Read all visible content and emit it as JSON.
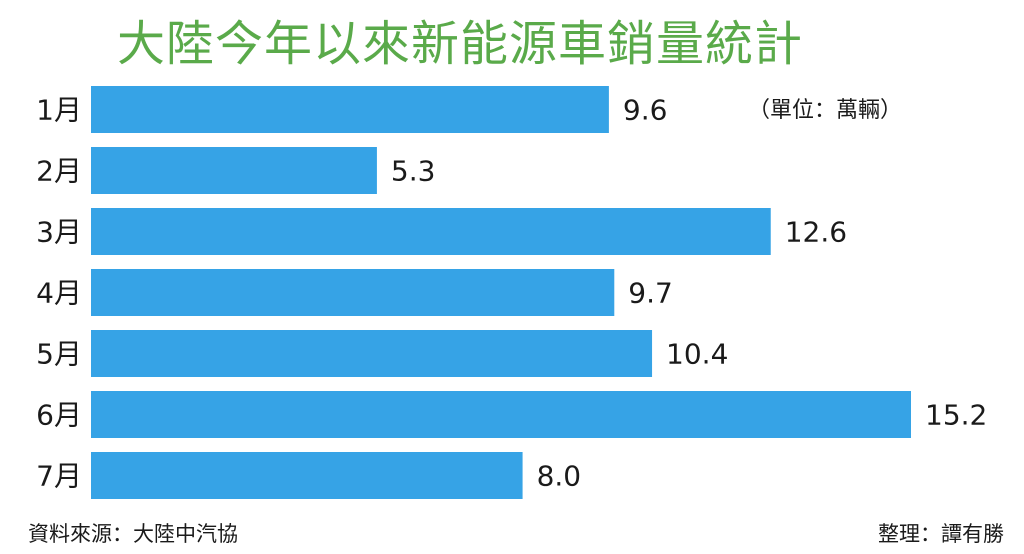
{
  "chart_data": {
    "type": "bar",
    "orientation": "horizontal",
    "title": "大陸今年以來新能源車銷量統計",
    "unit": "（單位：萬輛）",
    "categories": [
      "1月",
      "2月",
      "3月",
      "4月",
      "5月",
      "6月",
      "7月"
    ],
    "values": [
      9.6,
      5.3,
      12.6,
      9.7,
      10.4,
      15.2,
      8.0
    ],
    "value_labels": [
      "9.6",
      "5.3",
      "12.6",
      "9.7",
      "10.4",
      "15.2",
      "8.0"
    ],
    "xlim": [
      0,
      15.2
    ],
    "grid": false,
    "bar_color": "#36a3e6",
    "title_color": "#5aaa4a"
  },
  "footer": {
    "source": "資料來源：大陸中汽協",
    "editor": "整理：譚有勝"
  }
}
